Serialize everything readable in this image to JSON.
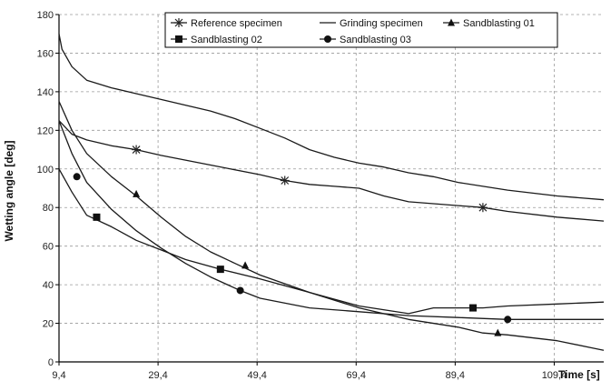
{
  "chart_data": {
    "type": "line",
    "title": "",
    "xlabel": "Time [s]",
    "ylabel": "Wetting angle [deg]",
    "xlim": [
      9.4,
      119.4
    ],
    "ylim": [
      0,
      180
    ],
    "x_ticks": [
      9.4,
      29.4,
      49.4,
      69.4,
      89.4,
      109.4
    ],
    "x_tick_labels": [
      "9,4",
      "29,4",
      "49,4",
      "69,4",
      "89,4",
      "109,4"
    ],
    "y_ticks": [
      0,
      20,
      40,
      60,
      80,
      100,
      120,
      140,
      160,
      180
    ],
    "y_tick_labels": [
      "0",
      "20",
      "40",
      "60",
      "80",
      "100",
      "120",
      "140",
      "160",
      "180"
    ],
    "grid": true,
    "legend_position": "top-right",
    "series": [
      {
        "name": "Reference specimen",
        "marker": "asterisk",
        "x": [
          9.4,
          12,
          15,
          20,
          25,
          30,
          40,
          50,
          55,
          60,
          65,
          70,
          75,
          80,
          90,
          95,
          100,
          110,
          119.4
        ],
        "y": [
          125,
          118,
          115,
          112,
          110,
          107,
          102,
          97,
          94,
          92,
          91,
          90,
          86,
          83,
          81,
          80,
          78,
          75,
          73
        ],
        "marker_x": [
          25,
          55,
          95
        ],
        "marker_y": [
          110,
          94,
          80
        ]
      },
      {
        "name": "Grinding specimen",
        "marker": "none",
        "x": [
          9.4,
          10,
          12,
          15,
          20,
          25,
          30,
          35,
          40,
          45,
          50,
          55,
          60,
          65,
          70,
          75,
          80,
          85,
          90,
          100,
          110,
          119.4
        ],
        "y": [
          170,
          162,
          153,
          146,
          142,
          139,
          136,
          133,
          130,
          126,
          121,
          116,
          110,
          106,
          103,
          101,
          98,
          96,
          93,
          89,
          86,
          84
        ]
      },
      {
        "name": "Sandblasting 01",
        "marker": "triangle",
        "x": [
          9.4,
          12,
          15,
          20,
          25,
          30,
          35,
          40,
          45,
          50,
          60,
          70,
          80,
          90,
          95,
          100,
          110,
          119.4
        ],
        "y": [
          135,
          120,
          108,
          96,
          86,
          75,
          65,
          57,
          51,
          45,
          36,
          28,
          22,
          18,
          15,
          14,
          11,
          6
        ],
        "marker_x": [
          25,
          47,
          98
        ],
        "marker_y": [
          87,
          50,
          15
        ]
      },
      {
        "name": "Sandblasting 02",
        "marker": "square",
        "x": [
          9.4,
          12,
          15,
          20,
          25,
          30,
          35,
          42,
          50,
          60,
          70,
          80,
          85,
          90,
          95,
          100,
          110,
          119.4
        ],
        "y": [
          100,
          88,
          76,
          70,
          63,
          58,
          53,
          48,
          43,
          36,
          29,
          25,
          28,
          28,
          28,
          29,
          30,
          31
        ],
        "marker_x": [
          17,
          42,
          93
        ],
        "marker_y": [
          75,
          48,
          28
        ]
      },
      {
        "name": "Sandblasting 03",
        "marker": "circle",
        "x": [
          9.4,
          12,
          15,
          20,
          25,
          30,
          35,
          40,
          46,
          50,
          60,
          70,
          80,
          90,
          100,
          110,
          119.4
        ],
        "y": [
          125,
          108,
          93,
          79,
          68,
          59,
          51,
          44,
          37,
          33,
          28,
          26,
          24,
          23,
          22,
          22,
          22
        ],
        "marker_x": [
          13,
          46,
          100
        ],
        "marker_y": [
          96,
          37,
          22
        ]
      }
    ]
  }
}
